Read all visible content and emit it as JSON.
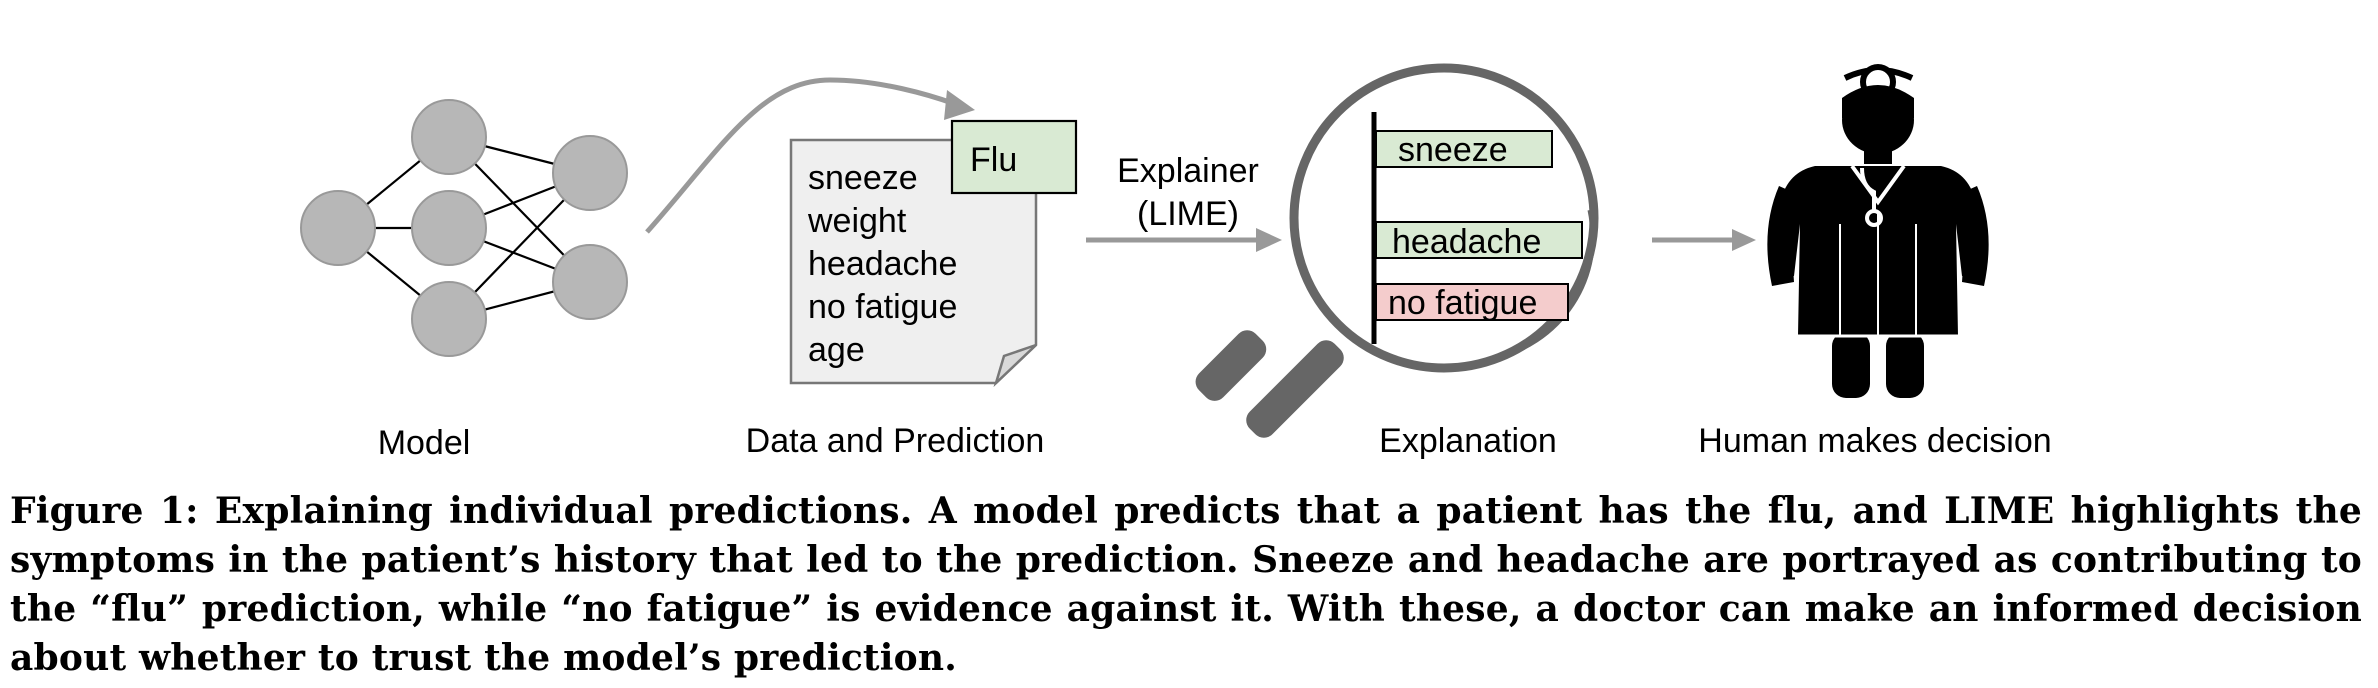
{
  "figure": {
    "stages": {
      "model": "Model",
      "data_prediction": "Data and Prediction",
      "explanation": "Explanation",
      "decision": "Human makes decision"
    },
    "document_features": [
      "sneeze",
      "weight",
      "headache",
      "no fatigue",
      "age"
    ],
    "prediction_label": "Flu",
    "explainer": {
      "line1": "Explainer",
      "line2": "(LIME)"
    },
    "explanation_bars": [
      {
        "label": "sneeze",
        "effect": "supports"
      },
      {
        "label": "headache",
        "effect": "supports"
      },
      {
        "label": "no fatigue",
        "effect": "contradicts"
      }
    ],
    "colors": {
      "support": "#d9ead3",
      "contradict": "#f4cccc",
      "node": "#b7b7b7",
      "arrow": "#999999",
      "magnifier": "#666666",
      "document": "#efefef",
      "person": "#000000"
    },
    "icons": [
      "neural-network-icon",
      "document-icon",
      "magnifier-icon",
      "doctor-icon"
    ]
  },
  "caption": {
    "text": "Figure 1: Explaining individual predictions. A model predicts that a patient has the flu, and LIME highlights the symptoms in the patient’s history that led to the prediction. Sneeze and headache are portrayed as contributing to the “flu” prediction, while “no fatigue” is evidence against it. With these, a doctor can make an informed decision about whether to trust the model’s prediction."
  }
}
